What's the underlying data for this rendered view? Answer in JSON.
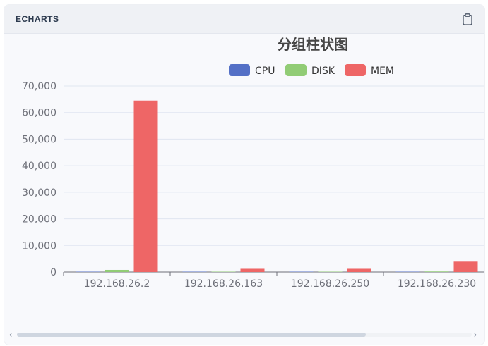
{
  "panel": {
    "title": "ECHARTS",
    "clipboard_icon": "clipboard-icon"
  },
  "chart_data": {
    "type": "bar",
    "title": "分组柱状图",
    "legend_position": "top-right",
    "categories": [
      "192.168.26.2",
      "192.168.26.163",
      "192.168.26.250",
      "192.168.26.230"
    ],
    "series": [
      {
        "name": "CPU",
        "color": "#5470c6",
        "values": [
          30,
          10,
          10,
          20
        ]
      },
      {
        "name": "DISK",
        "color": "#91cc75",
        "values": [
          800,
          50,
          50,
          200
        ]
      },
      {
        "name": "MEM",
        "color": "#ee6666",
        "values": [
          64500,
          1200,
          1200,
          3900
        ]
      }
    ],
    "ylim": [
      0,
      70000
    ],
    "yticks": [
      "0",
      "10,000",
      "20,000",
      "30,000",
      "40,000",
      "50,000",
      "60,000",
      "70,000"
    ],
    "grid": true
  },
  "scrollbar": {
    "left_icon": "chevron-left-icon",
    "right_icon": "chevron-right-icon",
    "left_glyph": "‹",
    "right_glyph": "›"
  }
}
